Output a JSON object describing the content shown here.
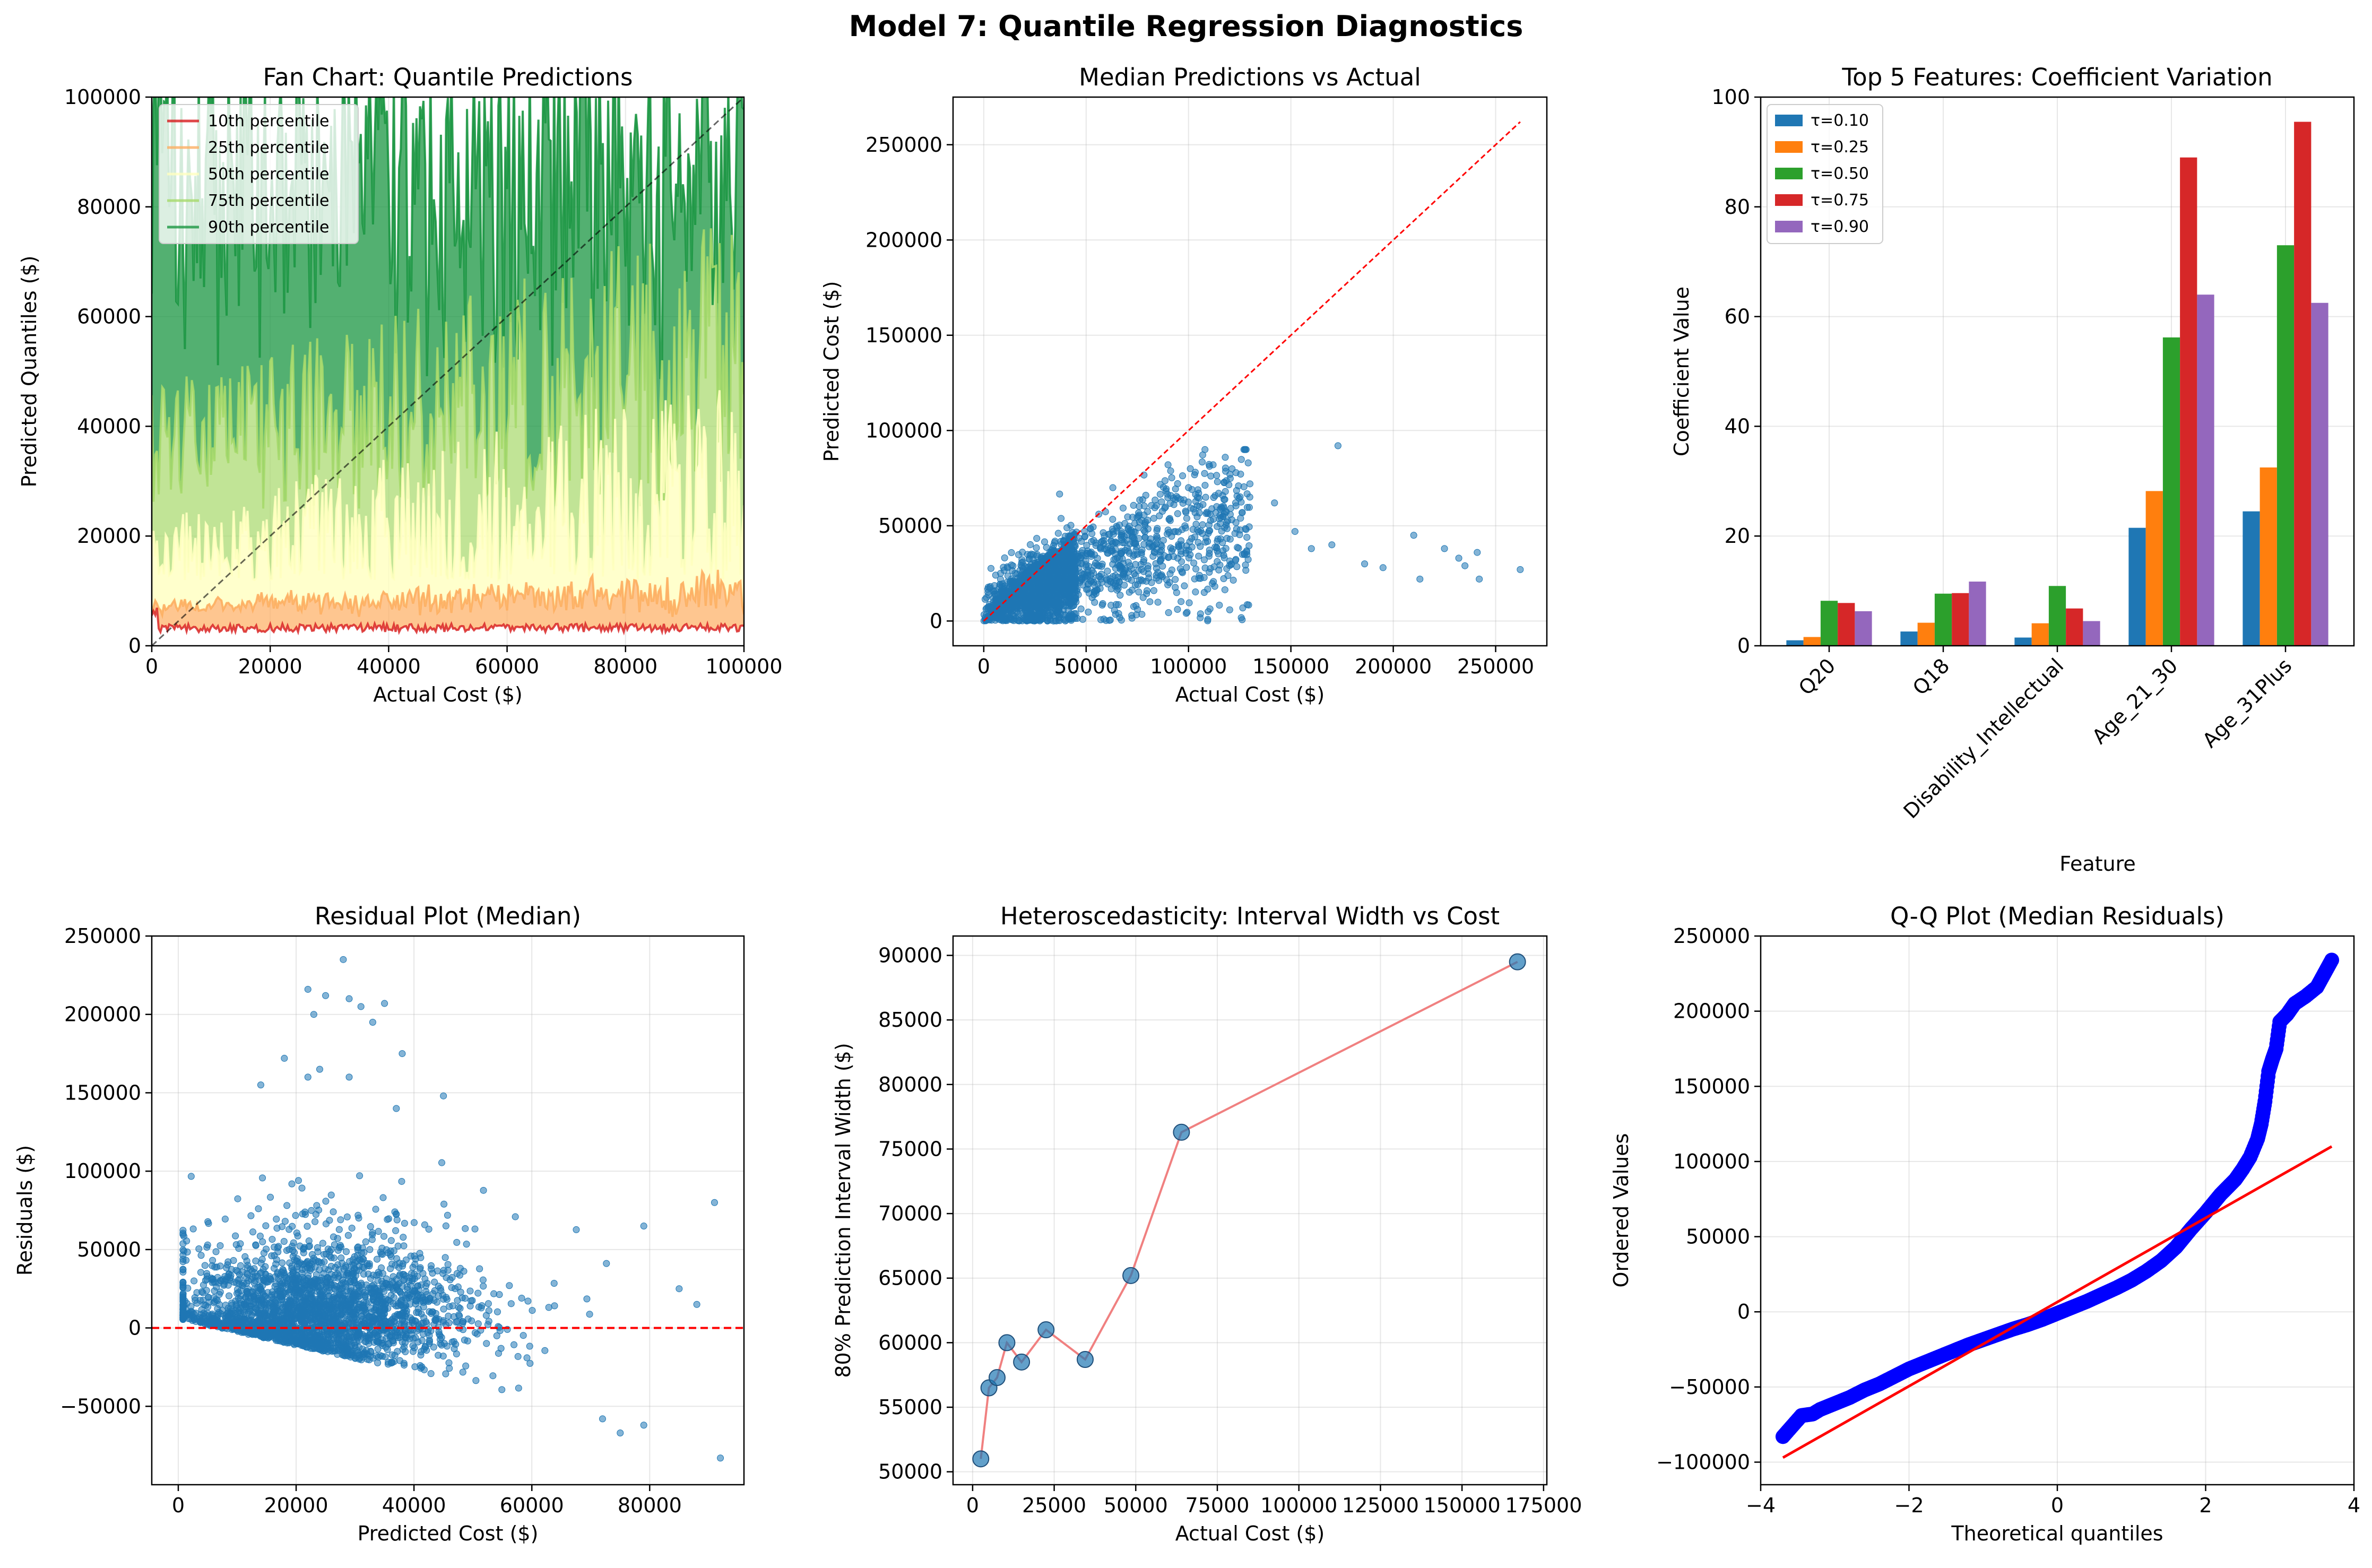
{
  "figure": {
    "title": "Model 7: Quantile Regression Diagnostics"
  },
  "chart_data": [
    {
      "id": "fan",
      "type": "area",
      "title": "Fan Chart: Quantile Predictions",
      "xlabel": "Actual Cost ($)",
      "ylabel": "Predicted Quantiles ($)",
      "xlim": [
        0,
        100000
      ],
      "ylim": [
        0,
        100000
      ],
      "xticks": [
        0,
        20000,
        40000,
        60000,
        80000,
        100000
      ],
      "yticks": [
        0,
        20000,
        40000,
        60000,
        80000,
        100000
      ],
      "grid": true,
      "legend_position": "top-left",
      "series": [
        {
          "name": "10th percentile",
          "color": "#d7191c",
          "level": 4000
        },
        {
          "name": "25th percentile",
          "color": "#fdae61",
          "level": 9000
        },
        {
          "name": "50th percentile",
          "color": "#ffffbf",
          "level": 22000
        },
        {
          "name": "75th percentile",
          "color": "#a6d96a",
          "level": 45000
        },
        {
          "name": "90th percentile",
          "color": "#1a9641",
          "level": 80000
        }
      ],
      "reference_line": {
        "x": [
          0,
          100000
        ],
        "y": [
          0,
          100000
        ],
        "color": "#000000",
        "style": "dashed"
      }
    },
    {
      "id": "median",
      "type": "scatter",
      "title": "Median Predictions vs Actual",
      "xlabel": "Actual Cost ($)",
      "ylabel": "Predicted Cost ($)",
      "xlim": [
        -15000,
        275000
      ],
      "ylim": [
        -13000,
        275000
      ],
      "xticks": [
        0,
        50000,
        100000,
        150000,
        200000,
        250000
      ],
      "yticks": [
        0,
        50000,
        100000,
        150000,
        200000,
        250000
      ],
      "grid": true,
      "color": "#1f77b4",
      "outliers": [
        [
          173000,
          92000
        ],
        [
          210000,
          45000
        ],
        [
          213000,
          22000
        ],
        [
          225000,
          38000
        ],
        [
          232000,
          33000
        ],
        [
          235000,
          29000
        ],
        [
          241000,
          36000
        ],
        [
          242000,
          22000
        ],
        [
          262000,
          27000
        ],
        [
          195000,
          28000
        ],
        [
          186000,
          30000
        ],
        [
          170000,
          40000
        ],
        [
          160000,
          38000
        ],
        [
          152000,
          47000
        ],
        [
          142000,
          62000
        ],
        [
          112000,
          82000
        ],
        [
          118000,
          68000
        ],
        [
          130000,
          72000
        ],
        [
          90000,
          82000
        ],
        [
          100000,
          70000
        ]
      ],
      "reference_line": {
        "x": [
          0,
          262000
        ],
        "y": [
          0,
          262000
        ],
        "color": "#ff0000",
        "style": "dashed"
      }
    },
    {
      "id": "features",
      "type": "bar",
      "title": "Top 5 Features: Coefficient Variation",
      "xlabel": "Feature",
      "ylabel": "Coefficient Value",
      "ylim": [
        0,
        100
      ],
      "yticks": [
        0,
        20,
        40,
        60,
        80,
        100
      ],
      "grid": true,
      "legend_position": "top-left",
      "categories": [
        "Q20",
        "Q18",
        "Disability_Intellectual",
        "Age_21_30",
        "Age_31Plus"
      ],
      "series": [
        {
          "name": "τ=0.10",
          "color": "#1f77b4",
          "values": [
            1.0,
            2.6,
            1.5,
            21.5,
            24.5
          ]
        },
        {
          "name": "τ=0.25",
          "color": "#ff7f0e",
          "values": [
            1.6,
            4.2,
            4.1,
            28.2,
            32.5
          ]
        },
        {
          "name": "τ=0.50",
          "color": "#2ca02c",
          "values": [
            8.2,
            9.5,
            10.9,
            56.2,
            73.0
          ]
        },
        {
          "name": "τ=0.75",
          "color": "#d62728",
          "values": [
            7.8,
            9.6,
            6.8,
            89.0,
            95.5
          ]
        },
        {
          "name": "τ=0.90",
          "color": "#9467bd",
          "values": [
            6.3,
            11.7,
            4.5,
            64.0,
            62.5
          ]
        }
      ]
    },
    {
      "id": "residual",
      "type": "scatter",
      "title": "Residual Plot (Median)",
      "xlabel": "Predicted Cost ($)",
      "ylabel": "Residuals ($)",
      "xlim": [
        -4500,
        96000
      ],
      "ylim": [
        -100000,
        250000
      ],
      "xticks": [
        0,
        20000,
        40000,
        60000,
        80000
      ],
      "yticks": [
        -50000,
        0,
        50000,
        100000,
        150000,
        200000,
        250000
      ],
      "grid": true,
      "color": "#1f77b4",
      "outliers": [
        [
          28000,
          235000
        ],
        [
          22000,
          216000
        ],
        [
          25000,
          212000
        ],
        [
          29000,
          210000
        ],
        [
          31000,
          205000
        ],
        [
          35000,
          207000
        ],
        [
          23000,
          200000
        ],
        [
          33000,
          195000
        ],
        [
          38000,
          175000
        ],
        [
          18000,
          172000
        ],
        [
          24000,
          165000
        ],
        [
          22000,
          160000
        ],
        [
          29000,
          160000
        ],
        [
          37000,
          140000
        ],
        [
          45000,
          148000
        ],
        [
          14000,
          155000
        ],
        [
          91000,
          80000
        ],
        [
          79000,
          65000
        ],
        [
          85000,
          25000
        ],
        [
          88000,
          15000
        ],
        [
          92000,
          -83000
        ],
        [
          79000,
          -62000
        ],
        [
          75000,
          -67000
        ],
        [
          72000,
          -58000
        ]
      ],
      "reference_line": {
        "y": 0,
        "color": "#ff0000",
        "style": "dashed"
      }
    },
    {
      "id": "hetero",
      "type": "line",
      "title": "Heteroscedasticity: Interval Width vs Cost",
      "xlabel": "Actual Cost ($)",
      "ylabel": "80% Prediction Interval Width ($)",
      "xlim": [
        -6000,
        176000
      ],
      "ylim": [
        49000,
        91500
      ],
      "xticks": [
        0,
        25000,
        50000,
        75000,
        100000,
        125000,
        150000,
        175000
      ],
      "yticks": [
        50000,
        55000,
        60000,
        65000,
        70000,
        75000,
        80000,
        85000,
        90000
      ],
      "grid": true,
      "line_color": "#f08080",
      "marker_color": "#1f77b4",
      "x": [
        2500,
        5000,
        7500,
        10500,
        15000,
        22500,
        34500,
        48500,
        64000,
        167000
      ],
      "y": [
        51000,
        56500,
        57300,
        60000,
        58500,
        61000,
        58700,
        65200,
        76300,
        89500
      ]
    },
    {
      "id": "qq",
      "type": "scatter",
      "title": "Q-Q Plot (Median Residuals)",
      "xlabel": "Theoretical quantiles",
      "ylabel": "Ordered Values",
      "xlim": [
        -4.0,
        4.0
      ],
      "ylim": [
        -115000,
        250000
      ],
      "xticks": [
        -4,
        -2,
        0,
        2,
        4
      ],
      "yticks": [
        -100000,
        -50000,
        0,
        50000,
        100000,
        150000,
        200000,
        250000
      ],
      "grid": true,
      "color": "#0000ff",
      "fit_line": {
        "x": [
          -3.7,
          3.7
        ],
        "y": [
          -97000,
          110000
        ],
        "color": "#ff0000"
      },
      "curve": [
        [
          -3.7,
          -83000
        ],
        [
          -3.45,
          -69000
        ],
        [
          -3.3,
          -68000
        ],
        [
          -3.2,
          -65000
        ],
        [
          -3.0,
          -61000
        ],
        [
          -2.8,
          -57000
        ],
        [
          -2.6,
          -52000
        ],
        [
          -2.4,
          -48000
        ],
        [
          -2.2,
          -43000
        ],
        [
          -2.0,
          -38000
        ],
        [
          -1.8,
          -34000
        ],
        [
          -1.6,
          -30000
        ],
        [
          -1.4,
          -26000
        ],
        [
          -1.2,
          -22000
        ],
        [
          -1.0,
          -18500
        ],
        [
          -0.8,
          -15000
        ],
        [
          -0.6,
          -11500
        ],
        [
          -0.4,
          -8500
        ],
        [
          -0.2,
          -5000
        ],
        [
          0.0,
          -1000
        ],
        [
          0.2,
          3000
        ],
        [
          0.4,
          7000
        ],
        [
          0.6,
          11500
        ],
        [
          0.8,
          16000
        ],
        [
          1.0,
          21000
        ],
        [
          1.2,
          27000
        ],
        [
          1.4,
          34000
        ],
        [
          1.6,
          43000
        ],
        [
          1.8,
          55000
        ],
        [
          2.0,
          66000
        ],
        [
          2.2,
          78000
        ],
        [
          2.4,
          88000
        ],
        [
          2.5,
          95000
        ],
        [
          2.6,
          103000
        ],
        [
          2.7,
          115000
        ],
        [
          2.75,
          125000
        ],
        [
          2.8,
          140000
        ],
        [
          2.85,
          160000
        ],
        [
          2.9,
          168000
        ],
        [
          2.95,
          175000
        ],
        [
          3.0,
          193000
        ],
        [
          3.1,
          198000
        ],
        [
          3.2,
          205000
        ],
        [
          3.35,
          210000
        ],
        [
          3.5,
          216000
        ],
        [
          3.7,
          234000
        ]
      ]
    }
  ]
}
